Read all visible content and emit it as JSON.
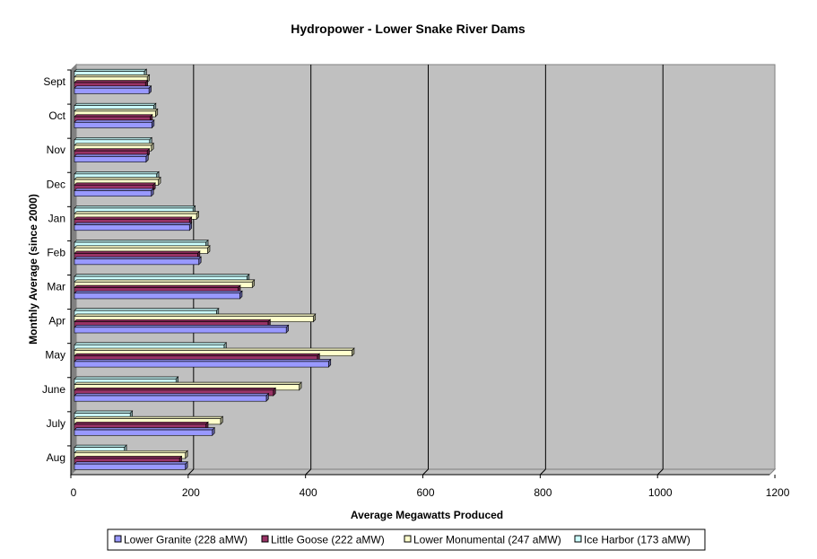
{
  "chart_data": {
    "type": "bar",
    "orientation": "horizontal",
    "title": "Hydropower - Lower Snake River Dams",
    "xlabel": "Average Megawatts Produced",
    "ylabel": "Monthly Average (since 2000)",
    "xlim": [
      0,
      1200
    ],
    "xticks": [
      0,
      200,
      400,
      600,
      800,
      1000,
      1200
    ],
    "grid": true,
    "legend_position": "bottom",
    "categories": [
      "Sept",
      "Oct",
      "Nov",
      "Dec",
      "Jan",
      "Feb",
      "Mar",
      "Apr",
      "May",
      "June",
      "July",
      "Aug"
    ],
    "series": [
      {
        "name": "Lower Granite (228 aMW)",
        "color": "#9999ff",
        "values": [
          127,
          132,
          122,
          131,
          196,
          212,
          282,
          361,
          433,
          327,
          235,
          189
        ]
      },
      {
        "name": "Little Goose (222 aMW)",
        "color": "#993366",
        "values": [
          121,
          129,
          124,
          134,
          196,
          210,
          279,
          330,
          414,
          339,
          224,
          179
        ]
      },
      {
        "name": "Lower Monumental (247 aMW)",
        "color": "#ffffcc",
        "values": [
          124,
          138,
          131,
          143,
          208,
          227,
          303,
          407,
          473,
          383,
          249,
          189
        ]
      },
      {
        "name": "Ice Harbor (173 aMW)",
        "color": "#ccffff",
        "values": [
          119,
          135,
          128,
          140,
          202,
          224,
          294,
          242,
          255,
          173,
          95,
          85
        ]
      }
    ]
  }
}
